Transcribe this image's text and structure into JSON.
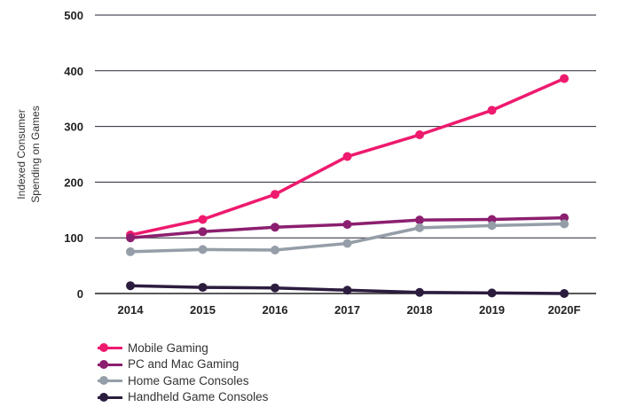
{
  "chart_data": {
    "type": "line",
    "title": "",
    "xlabel": "",
    "ylabel_lines": [
      "Indexed Consumer",
      "Spending on Games"
    ],
    "categories": [
      "2014",
      "2015",
      "2016",
      "2017",
      "2018",
      "2019",
      "2020F"
    ],
    "ylim": [
      0,
      500
    ],
    "yticks": [
      "0",
      "100",
      "200",
      "300",
      "400",
      "500"
    ],
    "grid": true,
    "legend_position": "bottom-left",
    "series": [
      {
        "name": "Mobile Gaming",
        "color": "#ee1a6e",
        "values": [
          105,
          133,
          178,
          246,
          285,
          329,
          386
        ]
      },
      {
        "name": "PC and Mac Gaming",
        "color": "#8c1f6f",
        "values": [
          100,
          111,
          119,
          124,
          132,
          133,
          136
        ]
      },
      {
        "name": "Home Game Consoles",
        "color": "#959ea8",
        "values": [
          75,
          79,
          78,
          90,
          118,
          122,
          125
        ]
      },
      {
        "name": "Handheld Game Consoles",
        "color": "#2c1d3f",
        "values": [
          14,
          11,
          10,
          6,
          2,
          1,
          0
        ]
      }
    ]
  }
}
